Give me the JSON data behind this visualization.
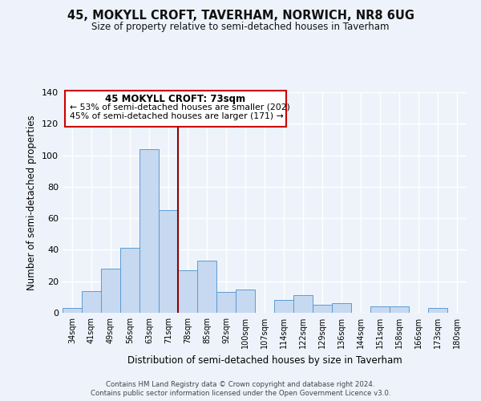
{
  "title": "45, MOKYLL CROFT, TAVERHAM, NORWICH, NR8 6UG",
  "subtitle": "Size of property relative to semi-detached houses in Taverham",
  "xlabel": "Distribution of semi-detached houses by size in Taverham",
  "ylabel": "Number of semi-detached properties",
  "bin_labels": [
    "34sqm",
    "41sqm",
    "49sqm",
    "56sqm",
    "63sqm",
    "71sqm",
    "78sqm",
    "85sqm",
    "92sqm",
    "100sqm",
    "107sqm",
    "114sqm",
    "122sqm",
    "129sqm",
    "136sqm",
    "144sqm",
    "151sqm",
    "158sqm",
    "166sqm",
    "173sqm",
    "180sqm"
  ],
  "bar_values": [
    3,
    14,
    28,
    41,
    104,
    65,
    27,
    33,
    13,
    15,
    0,
    8,
    11,
    5,
    6,
    0,
    4,
    4,
    0,
    3,
    0
  ],
  "bar_color": "#c6d9f0",
  "bar_edge_color": "#5b9bd5",
  "marker_label": "45 MOKYLL CROFT: 73sqm",
  "marker_color": "#8b0000",
  "annotation_line1": "← 53% of semi-detached houses are smaller (202)",
  "annotation_line2": "45% of semi-detached houses are larger (171) →",
  "ylim": [
    0,
    140
  ],
  "yticks": [
    0,
    20,
    40,
    60,
    80,
    100,
    120,
    140
  ],
  "footer_line1": "Contains HM Land Registry data © Crown copyright and database right 2024.",
  "footer_line2": "Contains public sector information licensed under the Open Government Licence v3.0.",
  "background_color": "#eef3fb",
  "grid_color": "#ffffff",
  "box_color": "#cc0000"
}
